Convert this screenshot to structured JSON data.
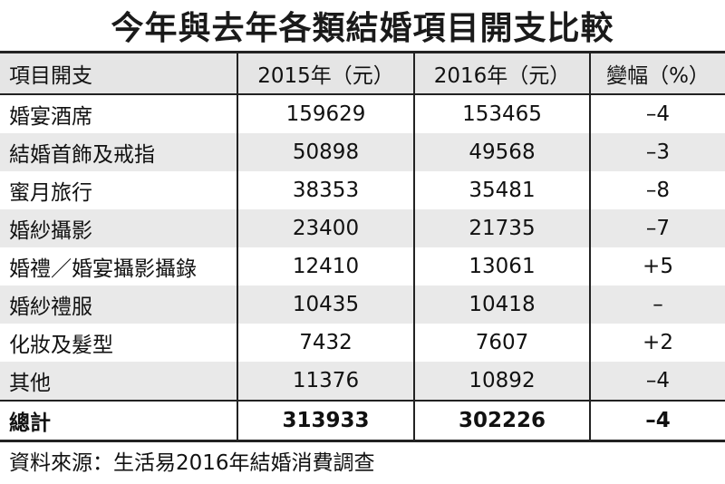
{
  "title": "今年與去年各類結婚項目開支比較",
  "table": {
    "headers": [
      "項目開支",
      "2015年（元）",
      "2016年（元）",
      "變幅（%）"
    ],
    "rows": [
      [
        "婚宴酒席",
        "159629",
        "153465",
        "–4"
      ],
      [
        "結婚首飾及戒指",
        "50898",
        "49568",
        "–3"
      ],
      [
        "蜜月旅行",
        "38353",
        "35481",
        "–8"
      ],
      [
        "婚紗攝影",
        "23400",
        "21735",
        "–7"
      ],
      [
        "婚禮／婚宴攝影攝錄",
        "12410",
        "13061",
        "+5"
      ],
      [
        "婚紗禮服",
        "10435",
        "10418",
        "–"
      ],
      [
        "化妝及髮型",
        "7432",
        "7607",
        "+2"
      ],
      [
        "其他",
        "11376",
        "10892",
        "–4"
      ]
    ],
    "total": [
      "總計",
      "313933",
      "302226",
      "–4"
    ]
  },
  "source": "資料來源：生活易2016年結婚消費調查"
}
